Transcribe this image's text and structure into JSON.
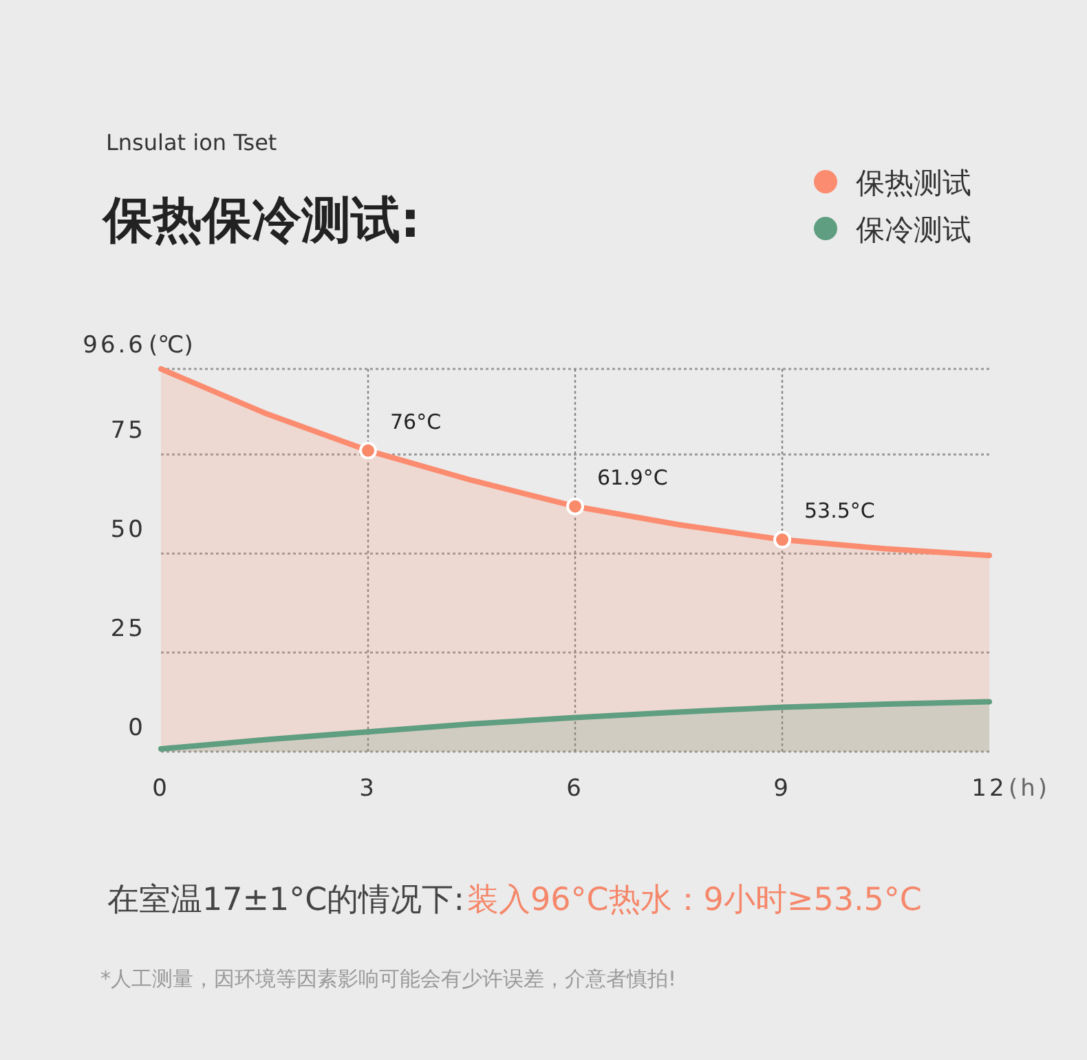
{
  "chart_data": {
    "type": "area",
    "subtitle": "Lnsulat ion Tset",
    "title": "保热保冷测试:",
    "xlabel": "(h)",
    "ylabel": "(℃)",
    "xlim": [
      0,
      12
    ],
    "xticks": [
      0,
      3,
      6,
      9,
      12
    ],
    "ylim": [
      0,
      96.6
    ],
    "yticks": [
      0,
      25,
      50,
      75,
      96.6
    ],
    "grid": true,
    "legend": "top right",
    "series": [
      {
        "name": "保热测试",
        "color": "#fb8c6f",
        "x": [
          0,
          1.5,
          3,
          4.5,
          6,
          7.5,
          9,
          10.5,
          12
        ],
        "values": [
          96.6,
          85.5,
          76,
          68.5,
          61.9,
          57.3,
          53.5,
          51.2,
          49.5
        ]
      },
      {
        "name": "保冷测试",
        "color": "#5f9e80",
        "x": [
          0,
          1.5,
          3,
          4.5,
          6,
          7.5,
          9,
          10.5,
          12
        ],
        "values": [
          0.7,
          3,
          5,
          7,
          8.6,
          10,
          11.2,
          12,
          12.6
        ]
      },
      {
        "type": "scatter",
        "marker": "circle",
        "color": "#f98a6a",
        "x": [
          3,
          6,
          9
        ],
        "values": [
          76,
          61.9,
          53.5
        ],
        "value_labels": [
          "76°C",
          "61.9°C",
          "53.5°C"
        ]
      }
    ],
    "annotations": [
      "在室温17±1°C的情况下:",
      "装入96°C热水：9小时≥53.5°C",
      "*人工测量，因环境等因素影响可能会有少许误差，介意者慎拍!"
    ]
  }
}
